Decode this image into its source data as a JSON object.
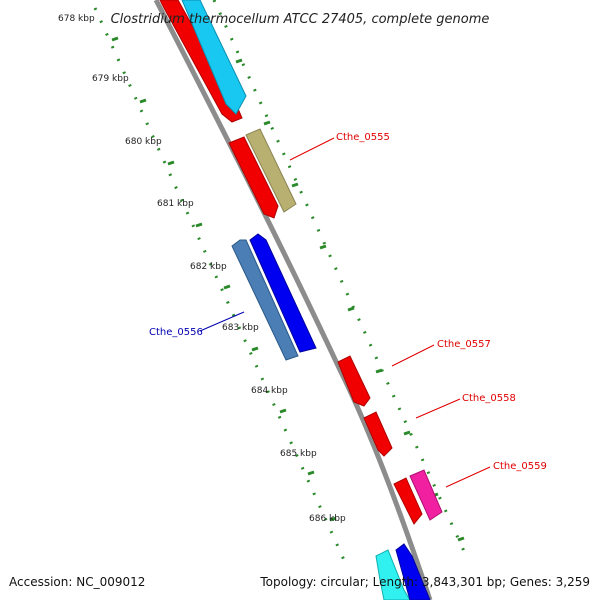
{
  "title": "Clostridium thermocellum ATCC 27405, complete genome",
  "footer": {
    "accession": "Accession: NC_009012",
    "topology": "Topology: circular; Length: 3,843,301 bp; Genes: 3,259"
  },
  "ticks": [
    "678 kbp",
    "679 kbp",
    "680 kbp",
    "681 kbp",
    "682 kbp",
    "683 kbp",
    "684 kbp",
    "685 kbp",
    "686 kbp"
  ],
  "gene_labels": [
    {
      "name": "gene-label-cthe-0555",
      "text": "Cthe_0555",
      "color": "#e00000"
    },
    {
      "name": "gene-label-cthe-0556",
      "text": "Cthe_0556",
      "color": "#0000b0"
    },
    {
      "name": "gene-label-cthe-0557",
      "text": "Cthe_0557",
      "color": "#e00000"
    },
    {
      "name": "gene-label-cthe-0558",
      "text": "Cthe_0558",
      "color": "#e00000"
    },
    {
      "name": "gene-label-cthe-0559",
      "text": "Cthe_0559",
      "color": "#e00000"
    }
  ],
  "colors": {
    "backbone": "#8c8c8c",
    "tick_dots": "#2a8a2a",
    "red_gene": "#f00000",
    "cyan_gene": "#18c8f0",
    "olive_gene": "#b8b070",
    "steelblue_gene": "#4a7eb4",
    "blue_gene": "#0000f0",
    "magenta_gene": "#f020a0",
    "light_cyan_gene": "#30f0f0"
  }
}
